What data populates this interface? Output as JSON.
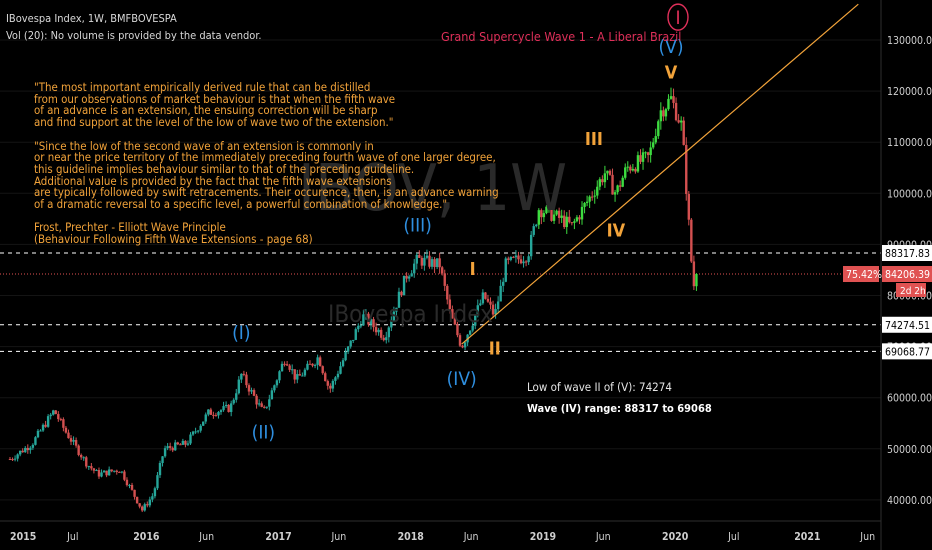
{
  "header": {
    "symbol": "IBovespa Index, 1W, BMFBOVESPA",
    "volume": "Vol (20): No volume is provided by the data vendor."
  },
  "watermark": {
    "big": "IBOV, 1W",
    "small": "IBovespa Index"
  },
  "title": "Grand Supercycle Wave 1 - A Liberal Brazil",
  "quote": "\"The most important empirically derived rule that can be distilled\nfrom our observations of market behaviour is that when the fifth wave\nof an advance is an extension, the ensuing correction will be sharp\nand find support at the level of the low of wave two of the extension.\"\n\n\"Since the low of the second wave of an extension is commonly in\nor near the price territory of the immediately preceding fourth wave of one larger degree,\nthis guideline implies behaviour similar to that of the preceding guideline.\nAdditional value is provided by the fact that the fifth wave extensions\nare typically followed by swift retracements. Their occurence, then, is an advance warning\nof a dramatic reversal to a specific level, a powerful combination of knowledge.\"\n\nFrost, Prechter - Elliott Wave Principle\n(Behaviour Following Fifth Wave Extensions - page 68)",
  "notes": {
    "low_wave_ii": "Low of wave II of (V): 74274",
    "wave_iv_range": "Wave (IV) range: 88317 to 69068"
  },
  "colors": {
    "background": "#000000",
    "up": "#26a69a",
    "up_bright": "#3ddc40",
    "down": "#d45050",
    "wave_blue": "#2f8fe0",
    "wave_orange": "#f2a33a",
    "title_red": "#e0305a",
    "current_price": "#e05252",
    "trendline": "#f2a33a"
  },
  "chart_data": {
    "type": "candlestick",
    "series_name": "IBOV 1W",
    "x_axis": {
      "ticks": [
        "2015",
        "Jul",
        "2016",
        "Jun",
        "2017",
        "Jun",
        "2018",
        "Jun",
        "2019",
        "Jun",
        "2020",
        "Jul",
        "2021",
        "Jun"
      ],
      "range": [
        "2015-01",
        "2021-07"
      ]
    },
    "y_axis": {
      "ticks": [
        "130000.00",
        "120000.00",
        "110000.00",
        "100000.00",
        "90000.00",
        "80000.00",
        "70000.00",
        "60000.00",
        "50000.00",
        "40000.00"
      ],
      "range": [
        36000,
        136000
      ],
      "side": "right"
    },
    "waypoints": [
      [
        "2015-01",
        48000
      ],
      [
        "2015-03",
        51000
      ],
      [
        "2015-05",
        57500
      ],
      [
        "2015-06",
        53500
      ],
      [
        "2015-08",
        47000
      ],
      [
        "2015-09",
        45000
      ],
      [
        "2015-11",
        46000
      ],
      [
        "2016-01",
        38000
      ],
      [
        "2016-02",
        41000
      ],
      [
        "2016-03",
        50000
      ],
      [
        "2016-05",
        51000
      ],
      [
        "2016-07",
        57000
      ],
      [
        "2016-09",
        58000
      ],
      [
        "2016-10",
        64500
      ],
      [
        "2016-12",
        57000
      ],
      [
        "2017-02",
        68000
      ],
      [
        "2017-03",
        63500
      ],
      [
        "2017-05",
        68000
      ],
      [
        "2017-06",
        61500
      ],
      [
        "2017-08",
        71000
      ],
      [
        "2017-09",
        76000
      ],
      [
        "2017-11",
        72000
      ],
      [
        "2018-01",
        84000
      ],
      [
        "2018-02",
        87000
      ],
      [
        "2018-04",
        86000
      ],
      [
        "2018-05",
        76000
      ],
      [
        "2018-06",
        70000
      ],
      [
        "2018-08",
        80000
      ],
      [
        "2018-09",
        76000
      ],
      [
        "2018-10",
        86000
      ],
      [
        "2018-12",
        88000
      ],
      [
        "2019-01",
        97000
      ],
      [
        "2019-03",
        95000
      ],
      [
        "2019-04",
        93500
      ],
      [
        "2019-05",
        97000
      ],
      [
        "2019-07",
        104000
      ],
      [
        "2019-08",
        100000
      ],
      [
        "2019-09",
        105000
      ],
      [
        "2019-11",
        107000
      ],
      [
        "2019-12",
        116000
      ],
      [
        "2020-01",
        118500
      ],
      [
        "2020-02",
        113000
      ],
      [
        "2020-03",
        82000
      ]
    ],
    "horizontal_levels": [
      {
        "value": 88317.83,
        "label": "88317.83",
        "style": "dashed"
      },
      {
        "value": 74274.51,
        "label": "74274.51",
        "style": "dashed"
      },
      {
        "value": 69068.77,
        "label": "69068.77",
        "style": "dashed"
      },
      {
        "value": 84206.39,
        "label": "84206.39",
        "style": "dotted",
        "current": true
      }
    ],
    "current_price_tag": {
      "change": "75.42%",
      "value": "84206.39",
      "countdown": "2d 2h"
    },
    "trendline": {
      "from": [
        "2018-06",
        70500
      ],
      "to": [
        "2021-06",
        137000
      ]
    },
    "wave_labels": [
      {
        "text": "(I)",
        "at": [
          "2016-10",
          71500
        ],
        "color": "blue"
      },
      {
        "text": "(II)",
        "at": [
          "2016-12",
          52000
        ],
        "color": "blue"
      },
      {
        "text": "(III)",
        "at": [
          "2018-02",
          92500
        ],
        "color": "blue"
      },
      {
        "text": "(IV)",
        "at": [
          "2018-06",
          62500
        ],
        "color": "blue"
      },
      {
        "text": "(V)",
        "at": [
          "2020-01",
          127500
        ],
        "color": "blue"
      },
      {
        "text": "I",
        "at": [
          "2018-07",
          84000
        ],
        "color": "orange"
      },
      {
        "text": "II",
        "at": [
          "2018-09",
          68500
        ],
        "color": "orange"
      },
      {
        "text": "III",
        "at": [
          "2019-06",
          109500
        ],
        "color": "orange"
      },
      {
        "text": "IV",
        "at": [
          "2019-08",
          91500
        ],
        "color": "orange"
      },
      {
        "text": "V",
        "at": [
          "2020-01",
          122500
        ],
        "color": "orange"
      },
      {
        "text": "I",
        "at": [
          "2020-01",
          133500
        ],
        "color": "red-circled"
      }
    ]
  }
}
